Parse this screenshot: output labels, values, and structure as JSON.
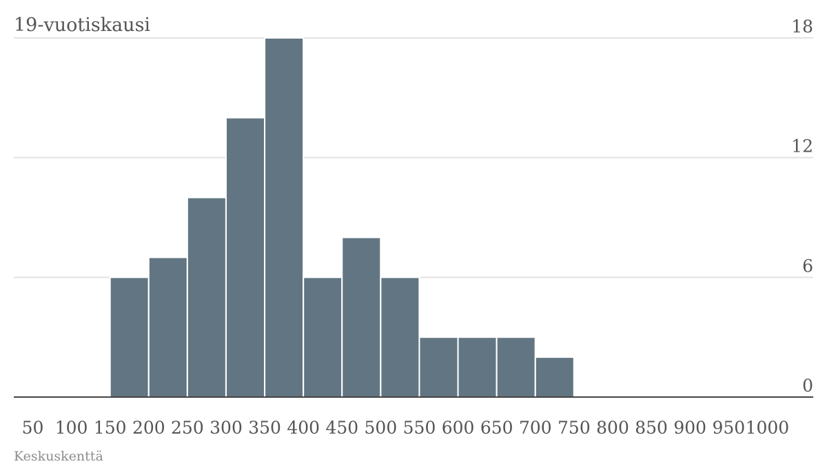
{
  "chart_data": {
    "type": "bar",
    "title": "19-vuotiskausi",
    "xlabel": "Keskuskenttä",
    "ylabel": "",
    "categories": [
      "50",
      "100",
      "150",
      "200",
      "250",
      "300",
      "350",
      "400",
      "450",
      "500",
      "550",
      "600",
      "650",
      "700",
      "750",
      "800",
      "850",
      "900",
      "950",
      "1000"
    ],
    "values": [
      0,
      0,
      6,
      7,
      10,
      14,
      18,
      6,
      8,
      6,
      3,
      3,
      3,
      2,
      0,
      0,
      0,
      0,
      0,
      0
    ],
    "ylim": [
      0,
      18
    ],
    "yticks": [
      0,
      6,
      12,
      18
    ],
    "grid": true,
    "bar_color": "#627582",
    "grid_color": "#e2e2e2",
    "axis_color": "#444444"
  }
}
